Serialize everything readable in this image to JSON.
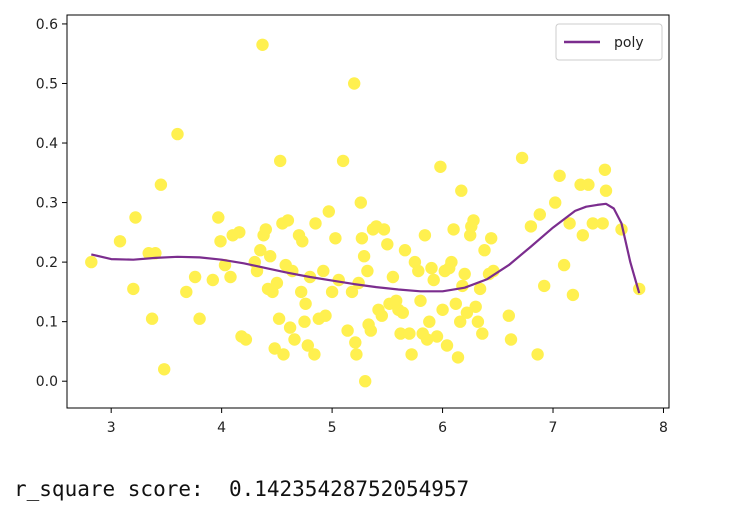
{
  "chart_data": {
    "type": "scatter",
    "title": "",
    "xlabel": "",
    "ylabel": "",
    "xlim": [
      2.6,
      8.05
    ],
    "ylim": [
      -0.045,
      0.615
    ],
    "xticks": [
      3,
      4,
      5,
      6,
      7,
      8
    ],
    "yticks": [
      0.0,
      0.1,
      0.2,
      0.3,
      0.4,
      0.5,
      0.6
    ],
    "xtick_labels": [
      "3",
      "4",
      "5",
      "6",
      "7",
      "8"
    ],
    "ytick_labels": [
      "0.0",
      "0.1",
      "0.2",
      "0.3",
      "0.4",
      "0.5",
      "0.6"
    ],
    "grid": false,
    "legend": {
      "placement": "top-right",
      "entries": [
        "poly"
      ]
    },
    "series": [
      {
        "kind": "scatter",
        "color": "#fff04f",
        "points": [
          [
            2.82,
            0.2
          ],
          [
            3.08,
            0.235
          ],
          [
            3.2,
            0.155
          ],
          [
            3.22,
            0.275
          ],
          [
            3.34,
            0.215
          ],
          [
            3.37,
            0.105
          ],
          [
            3.4,
            0.215
          ],
          [
            3.45,
            0.33
          ],
          [
            3.48,
            0.02
          ],
          [
            3.6,
            0.415
          ],
          [
            3.68,
            0.15
          ],
          [
            3.76,
            0.175
          ],
          [
            3.8,
            0.105
          ],
          [
            3.92,
            0.17
          ],
          [
            3.97,
            0.275
          ],
          [
            3.99,
            0.235
          ],
          [
            4.03,
            0.195
          ],
          [
            4.08,
            0.175
          ],
          [
            4.1,
            0.245
          ],
          [
            4.16,
            0.25
          ],
          [
            4.18,
            0.075
          ],
          [
            4.22,
            0.07
          ],
          [
            4.3,
            0.2
          ],
          [
            4.32,
            0.185
          ],
          [
            4.35,
            0.22
          ],
          [
            4.37,
            0.565
          ],
          [
            4.38,
            0.245
          ],
          [
            4.4,
            0.255
          ],
          [
            4.42,
            0.155
          ],
          [
            4.44,
            0.21
          ],
          [
            4.46,
            0.15
          ],
          [
            4.48,
            0.055
          ],
          [
            4.5,
            0.165
          ],
          [
            4.52,
            0.105
          ],
          [
            4.53,
            0.37
          ],
          [
            4.55,
            0.265
          ],
          [
            4.56,
            0.045
          ],
          [
            4.58,
            0.195
          ],
          [
            4.6,
            0.27
          ],
          [
            4.62,
            0.09
          ],
          [
            4.64,
            0.185
          ],
          [
            4.66,
            0.07
          ],
          [
            4.7,
            0.245
          ],
          [
            4.72,
            0.15
          ],
          [
            4.73,
            0.235
          ],
          [
            4.75,
            0.1
          ],
          [
            4.76,
            0.13
          ],
          [
            4.78,
            0.06
          ],
          [
            4.8,
            0.175
          ],
          [
            4.84,
            0.045
          ],
          [
            4.85,
            0.265
          ],
          [
            4.88,
            0.105
          ],
          [
            4.92,
            0.185
          ],
          [
            4.94,
            0.11
          ],
          [
            4.97,
            0.285
          ],
          [
            5.0,
            0.15
          ],
          [
            5.03,
            0.24
          ],
          [
            5.06,
            0.17
          ],
          [
            5.1,
            0.37
          ],
          [
            5.14,
            0.085
          ],
          [
            5.18,
            0.15
          ],
          [
            5.2,
            0.5
          ],
          [
            5.21,
            0.065
          ],
          [
            5.22,
            0.045
          ],
          [
            5.24,
            0.165
          ],
          [
            5.26,
            0.3
          ],
          [
            5.27,
            0.24
          ],
          [
            5.29,
            0.21
          ],
          [
            5.3,
            0.0
          ],
          [
            5.32,
            0.185
          ],
          [
            5.33,
            0.095
          ],
          [
            5.35,
            0.085
          ],
          [
            5.37,
            0.255
          ],
          [
            5.4,
            0.26
          ],
          [
            5.42,
            0.12
          ],
          [
            5.45,
            0.11
          ],
          [
            5.47,
            0.255
          ],
          [
            5.5,
            0.23
          ],
          [
            5.52,
            0.13
          ],
          [
            5.55,
            0.175
          ],
          [
            5.58,
            0.135
          ],
          [
            5.6,
            0.12
          ],
          [
            5.62,
            0.08
          ],
          [
            5.64,
            0.115
          ],
          [
            5.66,
            0.22
          ],
          [
            5.7,
            0.08
          ],
          [
            5.72,
            0.045
          ],
          [
            5.75,
            0.2
          ],
          [
            5.78,
            0.185
          ],
          [
            5.8,
            0.135
          ],
          [
            5.82,
            0.08
          ],
          [
            5.84,
            0.245
          ],
          [
            5.86,
            0.07
          ],
          [
            5.88,
            0.1
          ],
          [
            5.9,
            0.19
          ],
          [
            5.92,
            0.17
          ],
          [
            5.95,
            0.075
          ],
          [
            5.98,
            0.36
          ],
          [
            6.0,
            0.12
          ],
          [
            6.02,
            0.185
          ],
          [
            6.04,
            0.06
          ],
          [
            6.06,
            0.19
          ],
          [
            6.08,
            0.2
          ],
          [
            6.1,
            0.255
          ],
          [
            6.12,
            0.13
          ],
          [
            6.14,
            0.04
          ],
          [
            6.16,
            0.1
          ],
          [
            6.17,
            0.32
          ],
          [
            6.18,
            0.16
          ],
          [
            6.2,
            0.18
          ],
          [
            6.22,
            0.115
          ],
          [
            6.25,
            0.245
          ],
          [
            6.26,
            0.26
          ],
          [
            6.28,
            0.27
          ],
          [
            6.3,
            0.125
          ],
          [
            6.32,
            0.1
          ],
          [
            6.34,
            0.155
          ],
          [
            6.36,
            0.08
          ],
          [
            6.38,
            0.22
          ],
          [
            6.42,
            0.18
          ],
          [
            6.44,
            0.24
          ],
          [
            6.46,
            0.185
          ],
          [
            6.6,
            0.11
          ],
          [
            6.62,
            0.07
          ],
          [
            6.72,
            0.375
          ],
          [
            6.8,
            0.26
          ],
          [
            6.86,
            0.045
          ],
          [
            6.88,
            0.28
          ],
          [
            6.92,
            0.16
          ],
          [
            7.02,
            0.3
          ],
          [
            7.06,
            0.345
          ],
          [
            7.1,
            0.195
          ],
          [
            7.15,
            0.265
          ],
          [
            7.18,
            0.145
          ],
          [
            7.25,
            0.33
          ],
          [
            7.27,
            0.245
          ],
          [
            7.32,
            0.33
          ],
          [
            7.36,
            0.265
          ],
          [
            7.45,
            0.265
          ],
          [
            7.47,
            0.355
          ],
          [
            7.48,
            0.32
          ],
          [
            7.62,
            0.255
          ],
          [
            7.78,
            0.155
          ]
        ]
      },
      {
        "kind": "line",
        "name": "poly",
        "color": "#7b2d8e",
        "points": [
          [
            2.82,
            0.213
          ],
          [
            3.0,
            0.205
          ],
          [
            3.2,
            0.204
          ],
          [
            3.4,
            0.207
          ],
          [
            3.6,
            0.209
          ],
          [
            3.8,
            0.208
          ],
          [
            4.0,
            0.204
          ],
          [
            4.2,
            0.198
          ],
          [
            4.4,
            0.19
          ],
          [
            4.6,
            0.182
          ],
          [
            4.8,
            0.175
          ],
          [
            5.0,
            0.169
          ],
          [
            5.2,
            0.163
          ],
          [
            5.4,
            0.158
          ],
          [
            5.6,
            0.154
          ],
          [
            5.8,
            0.151
          ],
          [
            6.0,
            0.151
          ],
          [
            6.2,
            0.157
          ],
          [
            6.4,
            0.171
          ],
          [
            6.6,
            0.195
          ],
          [
            6.8,
            0.226
          ],
          [
            7.0,
            0.258
          ],
          [
            7.2,
            0.286
          ],
          [
            7.3,
            0.293
          ],
          [
            7.4,
            0.296
          ],
          [
            7.48,
            0.298
          ],
          [
            7.55,
            0.29
          ],
          [
            7.62,
            0.265
          ],
          [
            7.7,
            0.2
          ],
          [
            7.78,
            0.148
          ]
        ]
      }
    ]
  },
  "output": {
    "label": "r_square score:",
    "value": "0.14235428752054957"
  }
}
